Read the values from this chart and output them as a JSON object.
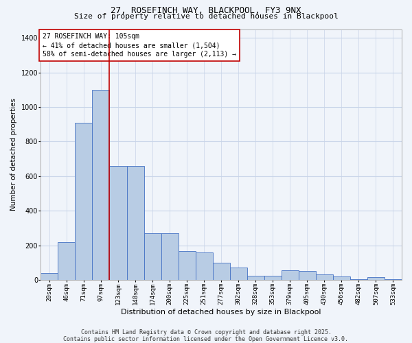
{
  "title": "27, ROSEFINCH WAY, BLACKPOOL, FY3 9NX",
  "subtitle": "Size of property relative to detached houses in Blackpool",
  "xlabel": "Distribution of detached houses by size in Blackpool",
  "ylabel": "Number of detached properties",
  "bar_values": [
    40,
    220,
    910,
    1100,
    660,
    660,
    270,
    270,
    165,
    160,
    100,
    70,
    25,
    25,
    55,
    50,
    30,
    20,
    5,
    15,
    5
  ],
  "categories": [
    "20sqm",
    "46sqm",
    "71sqm",
    "97sqm",
    "123sqm",
    "148sqm",
    "174sqm",
    "200sqm",
    "225sqm",
    "251sqm",
    "277sqm",
    "302sqm",
    "328sqm",
    "353sqm",
    "379sqm",
    "405sqm",
    "430sqm",
    "456sqm",
    "482sqm",
    "507sqm",
    "533sqm"
  ],
  "bar_color": "#b8cce4",
  "bar_edge_color": "#4472c4",
  "vline_color": "#c00000",
  "vline_x_index": 3.5,
  "annotation_text": "27 ROSEFINCH WAY: 105sqm\n← 41% of detached houses are smaller (1,504)\n58% of semi-detached houses are larger (2,113) →",
  "annotation_box_edge_color": "#c00000",
  "annotation_bg_color": "#ffffff",
  "ylim": [
    0,
    1450
  ],
  "yticks": [
    0,
    200,
    400,
    600,
    800,
    1000,
    1200,
    1400
  ],
  "background_color": "#f0f4fa",
  "grid_color": "#c8d4e8",
  "footnote": "Contains HM Land Registry data © Crown copyright and database right 2025.\nContains public sector information licensed under the Open Government Licence v3.0.",
  "title_fontsize": 9,
  "subtitle_fontsize": 8,
  "ylabel_fontsize": 7.5,
  "xlabel_fontsize": 8,
  "annotation_fontsize": 7,
  "tick_fontsize": 6.5,
  "ytick_fontsize": 7,
  "footnote_fontsize": 6
}
